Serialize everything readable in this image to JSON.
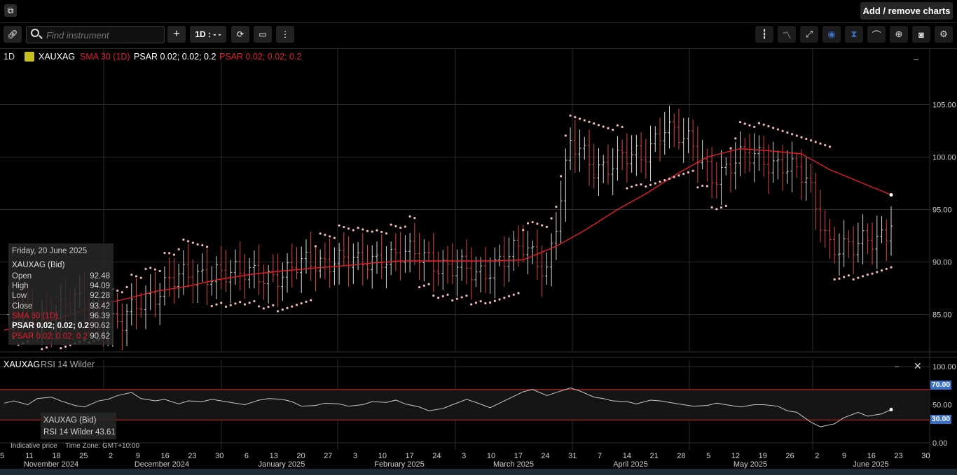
{
  "topbar": {
    "add_remove_label": "Add / remove charts"
  },
  "toolbar": {
    "search_placeholder": "Find instrument",
    "interval_label": "1D : - -",
    "buttons": [
      "link-icon",
      "plus-icon",
      "refresh-icon",
      "chart-type-icon",
      "more-vertical-icon"
    ],
    "right_tools": [
      "bar-style-icon",
      "indicator-icon",
      "draw-line-icon",
      "hide-icon",
      "cursor-icon",
      "curve-icon",
      "zoom-icon",
      "camera-icon",
      "settings-icon"
    ]
  },
  "legend": {
    "interval": "1D",
    "symbol": "XAUXAG",
    "sma": "SMA 30 (1D)",
    "psar_white": "PSAR 0.02; 0.02; 0.2",
    "psar_red": "PSAR 0.02; 0.02; 0.2",
    "minimize": "–"
  },
  "tooltip": {
    "date": "Friday, 20 June 2025",
    "title": "XAUXAG (Bid)",
    "rows": [
      {
        "label": "Open",
        "value": "92.48"
      },
      {
        "label": "High",
        "value": "94.09"
      },
      {
        "label": "Low",
        "value": "92.28"
      },
      {
        "label": "Close",
        "value": "93.42"
      },
      {
        "label": "SMA 30 (1D)",
        "value": "96.39"
      },
      {
        "label": "PSAR 0.02; 0.02; 0.2",
        "value": "90.62"
      },
      {
        "label": "PSAR 0.02; 0.02; 0.2",
        "value": "90.62"
      }
    ]
  },
  "rsi_panel": {
    "label_symbol": "XAUXAG",
    "label_ind": "RSI 14 Wilder",
    "tip_title": "XAUXAG (Bid)",
    "tip_value_label": "RSI 14 Wilder",
    "tip_value": "43.61",
    "upper_band": "70.00",
    "lower_band": "30.00"
  },
  "footer": {
    "indicative": "Indicative price",
    "timezone": "Time Zone: GMT+10:00"
  },
  "colors": {
    "up": "#d9d9d9",
    "down": "#e0463e",
    "sma": "#e11d2a",
    "band_label": "#3b6fc4",
    "psar": "#f3b9b9"
  },
  "chart_data": [
    {
      "type": "line",
      "title": "XAUXAG",
      "xlabel": "",
      "ylabel": "",
      "ylim": [
        81.5,
        110.3
      ],
      "y_ticks": [
        "105.00",
        "100.00",
        "95.00",
        "90.00",
        "85.00"
      ],
      "x_day_ticks": [
        "5",
        "11",
        "18",
        "25",
        "2",
        "9",
        "16",
        "23",
        "30",
        "6",
        "13",
        "20",
        "27",
        "3",
        "10",
        "17",
        "24",
        "3",
        "10",
        "17",
        "24",
        "31",
        "7",
        "14",
        "21",
        "28",
        "5",
        "12",
        "19",
        "26",
        "2",
        "9",
        "16",
        "23",
        "30"
      ],
      "x_month_labels": [
        "November 2024",
        "December 2024",
        "January 2025",
        "February 2025",
        "March 2025",
        "April 2025",
        "May 2025",
        "June 2025"
      ],
      "series": [
        {
          "name": "XAUXAG",
          "x_index": [
            0,
            5,
            10,
            15,
            20,
            25,
            30,
            35,
            40,
            45,
            50,
            55,
            60,
            65,
            70,
            75,
            80,
            85,
            90,
            95,
            100,
            105,
            110,
            115,
            120,
            125,
            130,
            135,
            140,
            145,
            150,
            155,
            160,
            165,
            170,
            175,
            180,
            185,
            188
          ],
          "close": [
            85.0,
            84.5,
            85.2,
            86.0,
            85.0,
            84.0,
            86.5,
            88.5,
            88.2,
            89.5,
            88.5,
            89.0,
            88.8,
            90.0,
            90.5,
            89.5,
            90.8,
            90.5,
            90.5,
            89.5,
            88.5,
            90.5,
            91.0,
            89.5,
            101.0,
            99.0,
            100.0,
            99.5,
            103.5,
            101.0,
            98.5,
            99.5,
            100.0,
            99.5,
            97.5,
            92.0,
            91.0,
            92.5,
            93.42
          ]
        },
        {
          "name": "SMA 30 (1D)",
          "values": [
            83.5,
            84.0,
            84.8,
            85.8,
            86.5,
            87.2,
            87.7,
            88.3,
            88.8,
            89.1,
            89.4,
            89.6,
            89.9,
            90.1,
            90.1,
            90.1,
            90.1,
            90.2,
            91.5,
            93.0,
            95.0,
            96.5,
            98.5,
            100.0,
            100.8,
            100.6,
            100.3,
            98.8,
            97.5,
            96.4
          ]
        },
        {
          "name": "PSAR 0.02; 0.02; 0.2",
          "last": 90.62
        }
      ]
    },
    {
      "type": "line",
      "title": "RSI 14 Wilder",
      "ylim": [
        0,
        100
      ],
      "y_ticks": [
        "100.00",
        "70.00",
        "50.00",
        "30.00",
        "0.00"
      ],
      "bands": [
        70,
        30
      ],
      "series": [
        {
          "name": "RSI 14 Wilder",
          "values": [
            52,
            55,
            50,
            58,
            60,
            55,
            49,
            47,
            55,
            57,
            62,
            66,
            58,
            55,
            57,
            51,
            55,
            54,
            57,
            55,
            52,
            50,
            56,
            58,
            57,
            54,
            48,
            49,
            52,
            51,
            48,
            50,
            54,
            53,
            56,
            51,
            47,
            42,
            45,
            50,
            57,
            53,
            46,
            52,
            58,
            67,
            70,
            62,
            66,
            72,
            68,
            60,
            58,
            55,
            54,
            51,
            56,
            55,
            52,
            50,
            48,
            49,
            52,
            49,
            47,
            50,
            50,
            48,
            42,
            40,
            27,
            21,
            25,
            33,
            40,
            35,
            38,
            43.61
          ],
          "last": 43.61
        }
      ]
    }
  ]
}
